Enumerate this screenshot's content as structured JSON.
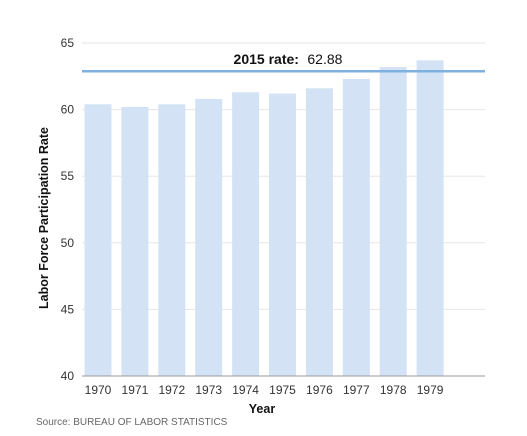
{
  "chart_data": {
    "type": "bar",
    "categories": [
      "1970",
      "1971",
      "1972",
      "1973",
      "1974",
      "1975",
      "1976",
      "1977",
      "1978",
      "1979"
    ],
    "values": [
      60.4,
      60.2,
      60.4,
      60.8,
      61.3,
      61.2,
      61.6,
      62.3,
      63.2,
      63.7
    ],
    "title": "",
    "xlabel": "Year",
    "ylabel": "Labor Force Participation Rate",
    "ylim": [
      40,
      65
    ],
    "yticks": [
      "40",
      "45",
      "50",
      "55",
      "60",
      "65"
    ],
    "grid": true,
    "reference_line": {
      "label": "2015 rate:",
      "value_text": "62.88",
      "value": 62.88
    },
    "source": "Source: BUREAU OF LABOR STATISTICS"
  },
  "colors": {
    "bar": "#d3e3f5",
    "reference_line": "#7fb1de",
    "grid": "#e6e6e6",
    "axis": "#999999"
  }
}
